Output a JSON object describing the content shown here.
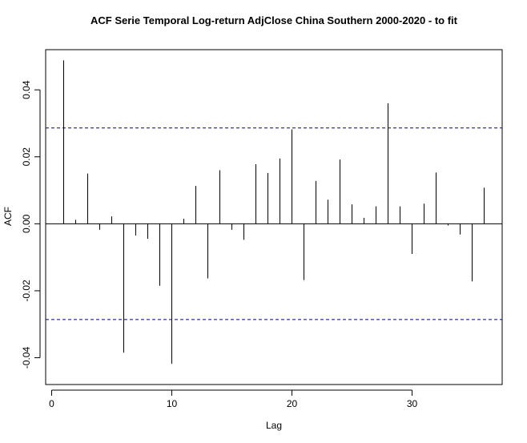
{
  "chart_data": {
    "type": "bar",
    "title": "ACF Serie Temporal Log-return AdjClose China Southern 2000-2020 - to fit",
    "xlabel": "Lag",
    "ylabel": "ACF",
    "xlim": [
      -0.5,
      37.5
    ],
    "ylim": [
      -0.048,
      0.052
    ],
    "x_ticks": [
      0,
      10,
      20,
      30
    ],
    "y_ticks": [
      -0.04,
      -0.02,
      0.0,
      0.02,
      0.04
    ],
    "y_tick_labels": [
      "-0.04",
      "-0.02",
      "0.00",
      "0.02",
      "0.04"
    ],
    "confidence_limit": 0.0286,
    "confidence_color": "#00008b",
    "x": [
      1,
      2,
      3,
      4,
      5,
      6,
      7,
      8,
      9,
      10,
      11,
      12,
      13,
      14,
      15,
      16,
      17,
      18,
      19,
      20,
      21,
      22,
      23,
      24,
      25,
      26,
      27,
      28,
      29,
      30,
      31,
      32,
      33,
      34,
      35,
      36
    ],
    "values": [
      0.0488,
      0.0012,
      0.015,
      -0.0018,
      0.0022,
      -0.0385,
      -0.0035,
      -0.0045,
      -0.0185,
      -0.0418,
      0.0015,
      0.0113,
      -0.0163,
      0.016,
      -0.0018,
      -0.0048,
      0.0178,
      0.0152,
      0.0195,
      0.0282,
      -0.0168,
      0.0128,
      0.0072,
      0.0192,
      0.0058,
      0.0018,
      0.0052,
      0.036,
      0.0052,
      -0.009,
      0.006,
      0.0153,
      -0.0005,
      -0.0032,
      -0.0172,
      0.0108
    ]
  }
}
